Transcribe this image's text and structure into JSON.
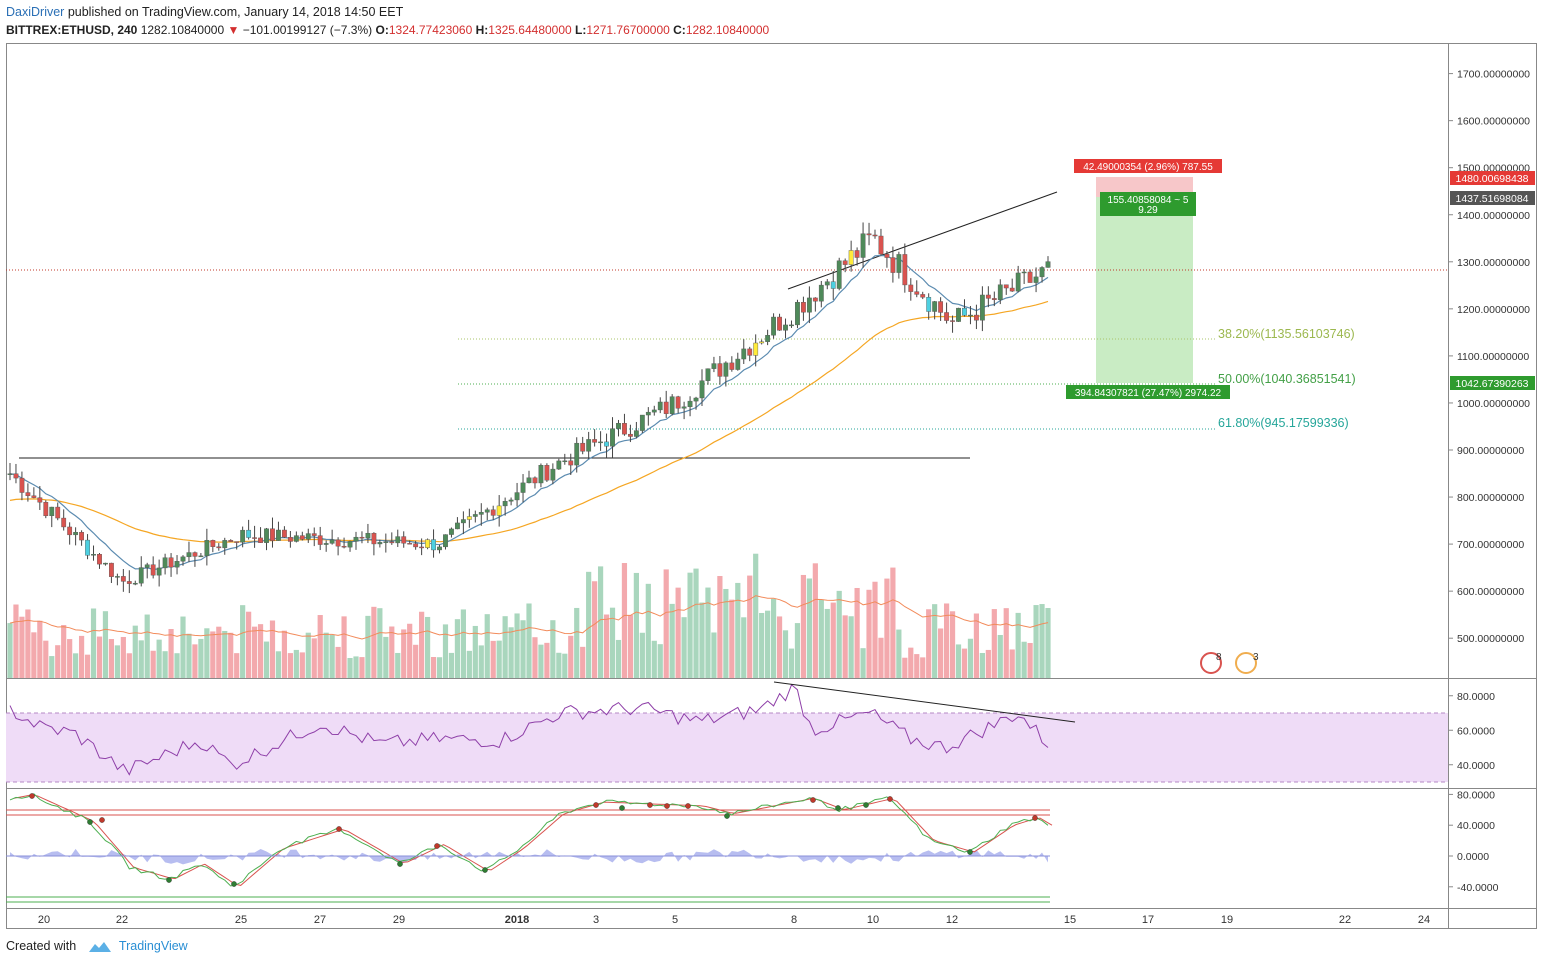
{
  "header": {
    "author": "DaxiDriver",
    "published_text": "published on TradingView.com, January 14, 2018 14:50 EET",
    "symbol": "BITTREX:ETHUSD, 240",
    "last": "1282.10840000",
    "change": "−101.00199127 (−7.3%)",
    "o_label": "O:",
    "o": "1324.77423060",
    "h_label": "H:",
    "h": "1325.64480000",
    "l_label": "L:",
    "l": "1271.76700000",
    "c_label": "C:",
    "c": "1282.10840000"
  },
  "footer": {
    "created": "Created with",
    "brand": "TradingView"
  },
  "colors": {
    "up": "#4f8a5a",
    "down": "#d9534f",
    "highlight_yellow": "#ffeb3b",
    "highlight_cyan": "#4dd0e1",
    "ema_fast": "#5b8bb0",
    "ema_slow": "#f5a623",
    "vol_up": "#a9d6bd",
    "vol_down": "#f3a9ad",
    "rsi": "#8e3fa8",
    "rsi_band": "#efdcf7",
    "target": "#c9ecc4",
    "stop": "#f7c7c9"
  },
  "price_scale": {
    "labels": [
      "1700.00000000",
      "1600.00000000",
      "1500.00000000",
      "1400.00000000",
      "1300.00000000",
      "1200.00000000",
      "1100.00000000",
      "1000.00000000",
      "900.00000000",
      "800.00000000",
      "700.00000000",
      "600.00000000",
      "500.00000000"
    ],
    "tag_stop": "1480.00698438",
    "tag_entry": "1437.51698084",
    "tag_target": "1042.67390263"
  },
  "rsi_scale": {
    "labels": [
      "80.0000",
      "60.0000",
      "40.0000"
    ]
  },
  "osc_scale": {
    "labels": [
      "80.0000",
      "40.0000",
      "0.0000",
      "-40.0000"
    ]
  },
  "x_axis": {
    "labels": [
      "20",
      "22",
      "25",
      "27",
      "29",
      "2018",
      "3",
      "5",
      "8",
      "10",
      "12",
      "15",
      "17",
      "19",
      "22",
      "24"
    ]
  },
  "fib": {
    "f382": "38.20%(1135.56103746)",
    "f50": "50.00%(1040.36851541)",
    "f618": "61.80%(945.17599336)"
  },
  "position": {
    "stop_label": "42.49000354 (2.96%) 787.55",
    "mid_label_1": "155.40858084 ~ 5",
    "mid_label_2": "9.29",
    "target_label": "394.84307821 (27.47%) 2974.22"
  },
  "events": {
    "e1": "8",
    "e2": "3"
  },
  "chart_data": {
    "type": "candlestick",
    "symbol": "ETHUSD",
    "exchange": "BITTREX",
    "timeframe": "240",
    "date_range": [
      "Dec 19 2017",
      "Jan 14 2018"
    ],
    "ylim": [
      430,
      1760
    ],
    "key_points": [
      {
        "date": "Dec 19",
        "price": 850
      },
      {
        "date": "Dec 22",
        "price": 620
      },
      {
        "date": "Dec 25",
        "price": 720
      },
      {
        "date": "Dec 30",
        "price": 700
      },
      {
        "date": "Jan 2",
        "price": 870
      },
      {
        "date": "Jan 5",
        "price": 1000
      },
      {
        "date": "Jan 8",
        "price": 1200
      },
      {
        "date": "Jan 10",
        "price": 1350
      },
      {
        "date": "Jan 12",
        "price": 1170
      },
      {
        "date": "Jan 14",
        "price": 1282
      }
    ],
    "last_close": 1282.1084,
    "fibonacci": [
      {
        "level": 0.382,
        "price": 1135.56103746
      },
      {
        "level": 0.5,
        "price": 1040.36851541
      },
      {
        "level": 0.618,
        "price": 945.17599336
      }
    ],
    "short_position": {
      "entry": 1437.51698084,
      "stop": 1480.00698438,
      "target": 1042.67390263
    },
    "support_line": 880,
    "rsi_ylim": [
      25,
      90
    ],
    "osc_ylim": [
      -60,
      90
    ]
  }
}
